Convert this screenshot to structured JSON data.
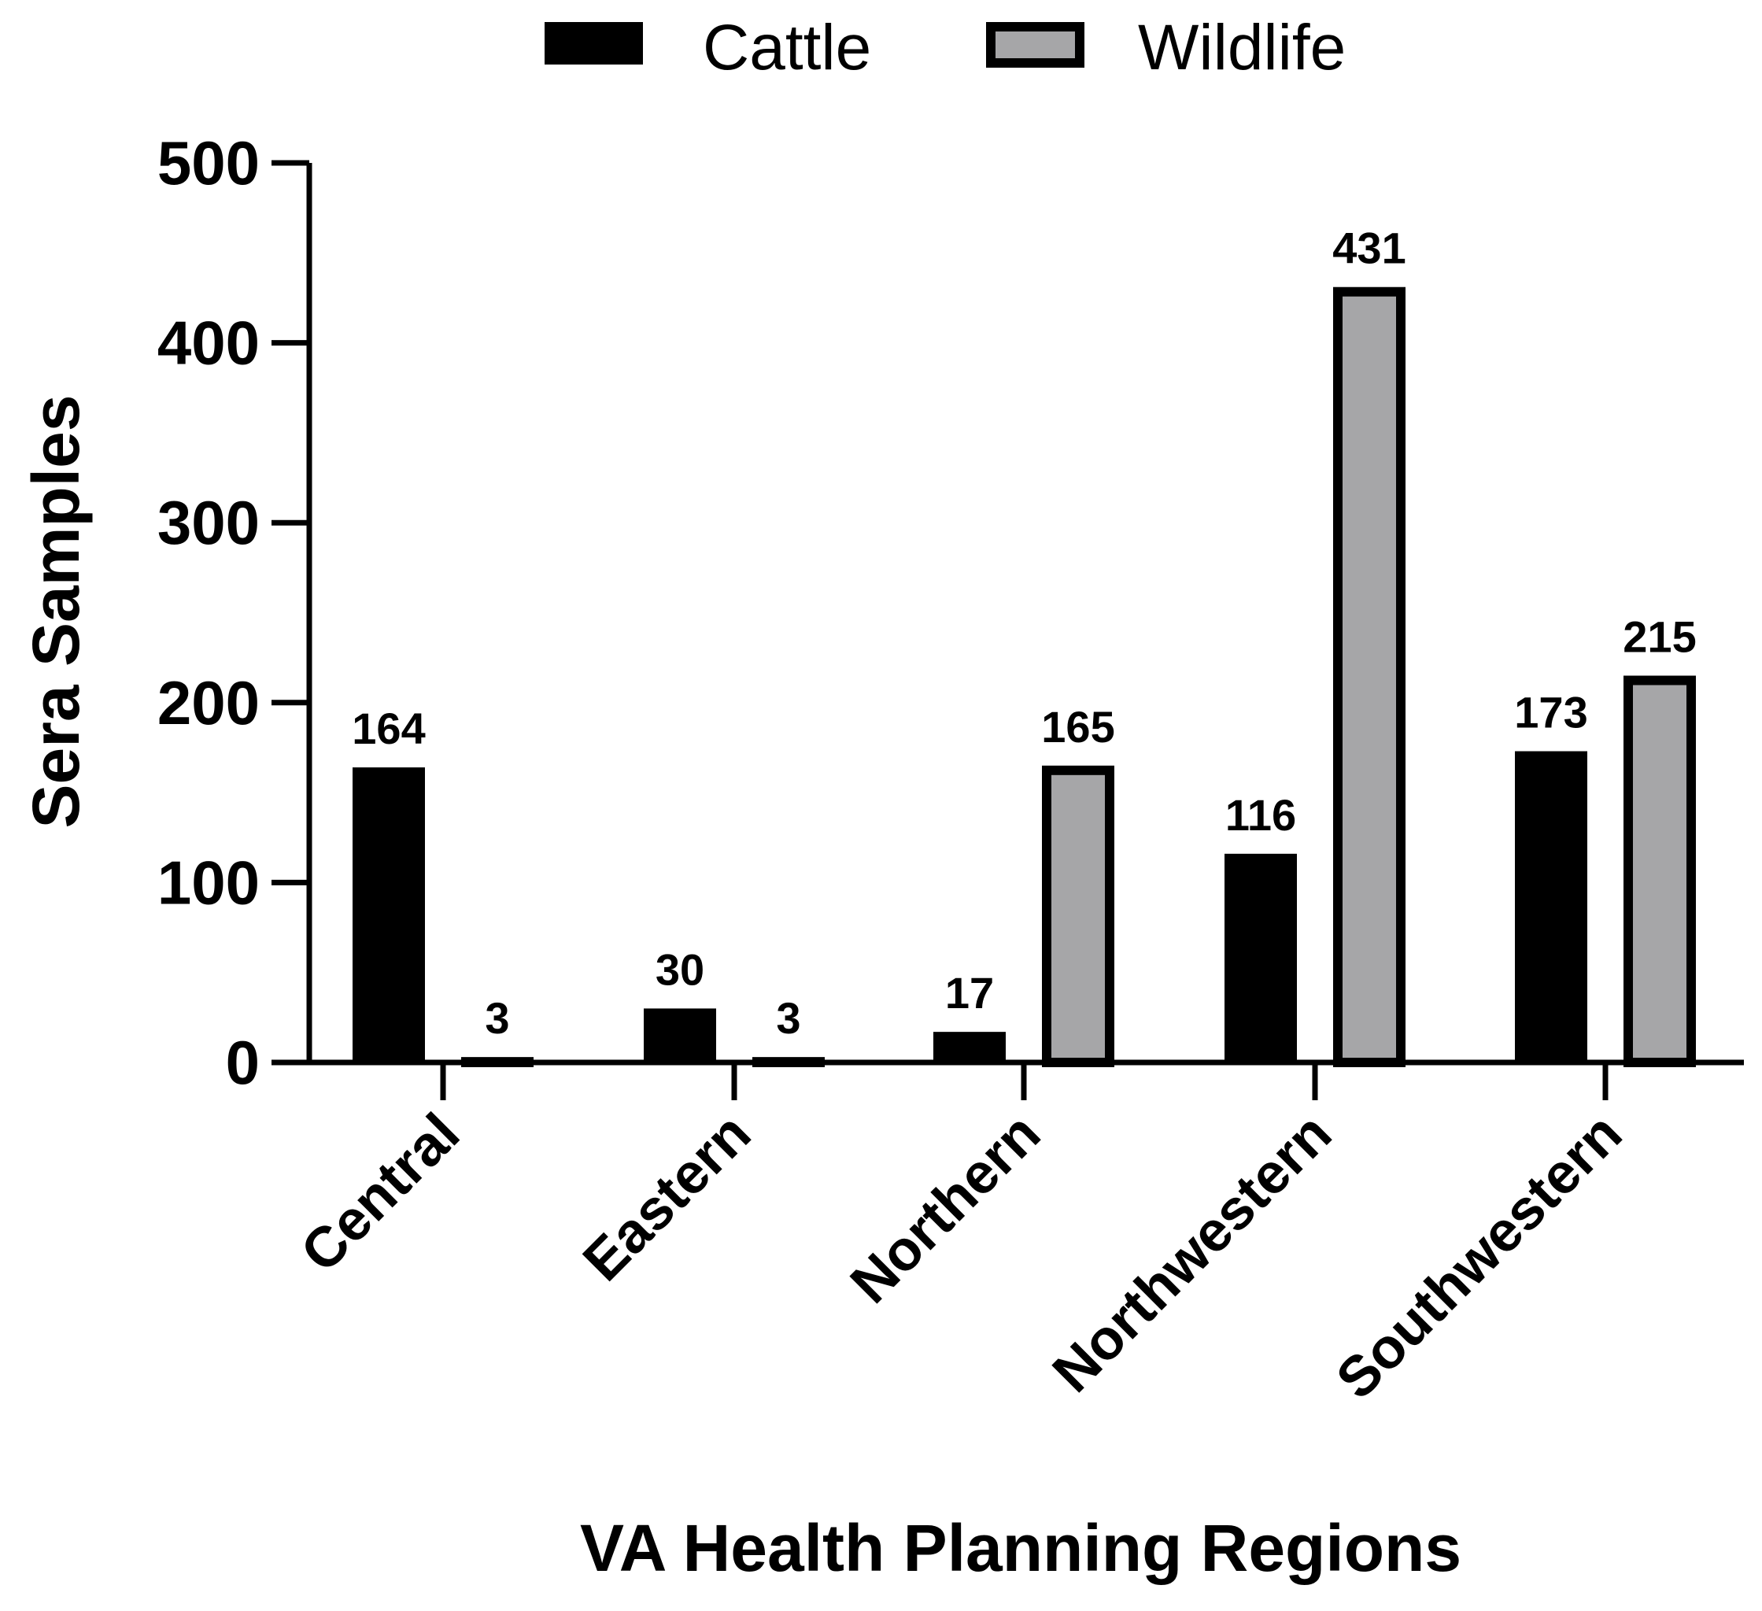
{
  "chart_data": {
    "type": "bar",
    "title": "",
    "xlabel": "VA Health Planning Regions",
    "ylabel": "Sera Samples",
    "ylim": [
      0,
      500
    ],
    "yticks": [
      0,
      100,
      200,
      300,
      400,
      500
    ],
    "categories": [
      "Central",
      "Eastern",
      "Northern",
      "Northwestern",
      "Southwestern"
    ],
    "series": [
      {
        "name": "Cattle",
        "color": "#000000",
        "values": [
          164,
          30,
          17,
          116,
          173
        ]
      },
      {
        "name": "Wildlife",
        "color": "#a6a6a8",
        "values": [
          3,
          3,
          165,
          431,
          215
        ]
      }
    ],
    "legend": {
      "position": "top-center"
    },
    "grid": false
  }
}
